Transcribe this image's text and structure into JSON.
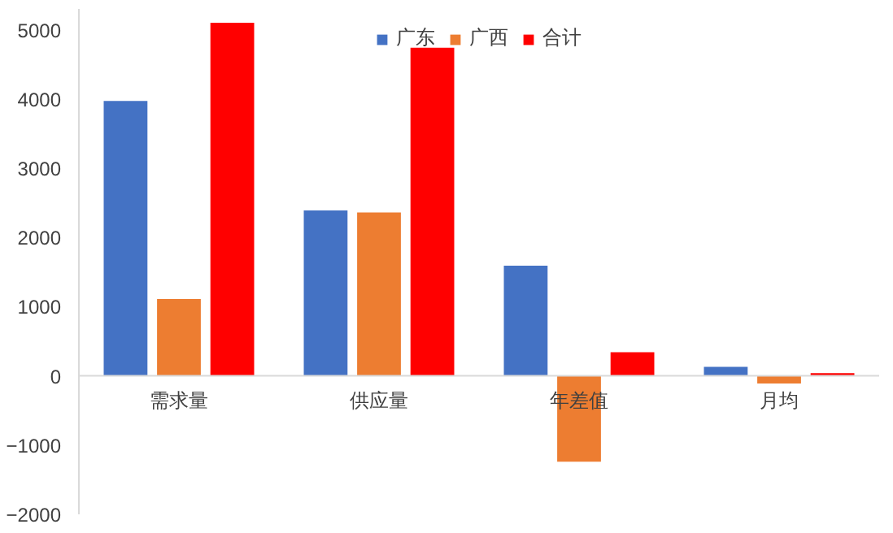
{
  "chart_data": {
    "type": "bar",
    "categories": [
      "需求量",
      "供应量",
      "年差值",
      "月均"
    ],
    "series": [
      {
        "name": "广东",
        "color": "#4472c4",
        "values": [
          3970,
          2390,
          1590,
          130
        ]
      },
      {
        "name": "广西",
        "color": "#ed7d31",
        "values": [
          1110,
          2360,
          -1240,
          -110
        ]
      },
      {
        "name": "合计",
        "color": "#ff0000",
        "values": [
          5100,
          4740,
          340,
          40
        ]
      }
    ],
    "ylim": [
      -2000,
      5300
    ],
    "yticks": [
      -2000,
      -1000,
      0,
      1000,
      2000,
      3000,
      4000,
      5000
    ],
    "grid": false,
    "legend": "top"
  }
}
